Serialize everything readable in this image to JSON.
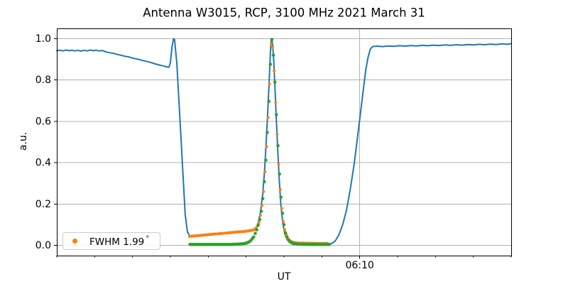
{
  "title": "Antenna W3015, RCP, 3100 MHz 2021 March 31",
  "x_axis_label": "UT",
  "y_axis_label": "a.u.",
  "legend": {
    "text": "FWHM 1.99",
    "degree": "°",
    "marker_color": "#ff7f0e"
  },
  "colors": {
    "line": "#1f77b4",
    "fit": "#ff7f0e",
    "data": "#2ca02c",
    "grid": "#b0b0b0",
    "spine": "#000000"
  },
  "chart_data": {
    "type": "line",
    "title": "Antenna W3015, RCP, 3100 MHz 2021 March 31",
    "xlabel": "UT",
    "ylabel": "a.u.",
    "x_unit": "minutes after 06:00 UT",
    "xlim": [
      2,
      14
    ],
    "ylim": [
      -0.05,
      1.05
    ],
    "grid": true,
    "x_axis": {
      "major_ticks": [
        {
          "t": 10,
          "label": "06:10"
        }
      ],
      "minor_ticks": [
        2,
        3,
        4,
        5,
        6,
        7,
        8,
        9,
        10,
        11,
        12,
        13,
        14
      ]
    },
    "y_axis": {
      "ticks": [
        {
          "v": 0.0,
          "label": "0.0"
        },
        {
          "v": 0.2,
          "label": "0.2"
        },
        {
          "v": 0.4,
          "label": "0.4"
        },
        {
          "v": 0.6,
          "label": "0.6"
        },
        {
          "v": 0.8,
          "label": "0.8"
        },
        {
          "v": 1.0,
          "label": "1.0"
        }
      ]
    },
    "legend": {
      "position": "lower left",
      "entries": [
        {
          "label": "FWHM 1.99°",
          "series": "gaussian-fit",
          "color": "#ff7f0e"
        }
      ]
    },
    "series": [
      {
        "name": "signal-line",
        "type": "line",
        "color": "#1f77b4",
        "line_width": 2,
        "points": [
          [
            2.0,
            0.942
          ],
          [
            2.08,
            0.944
          ],
          [
            2.16,
            0.941
          ],
          [
            2.24,
            0.945
          ],
          [
            2.32,
            0.942
          ],
          [
            2.4,
            0.944
          ],
          [
            2.48,
            0.941
          ],
          [
            2.56,
            0.944
          ],
          [
            2.64,
            0.94
          ],
          [
            2.72,
            0.944
          ],
          [
            2.8,
            0.941
          ],
          [
            2.88,
            0.945
          ],
          [
            2.96,
            0.942
          ],
          [
            3.04,
            0.944
          ],
          [
            3.12,
            0.941
          ],
          [
            3.2,
            0.943
          ],
          [
            3.3,
            0.936
          ],
          [
            3.4,
            0.932
          ],
          [
            3.5,
            0.929
          ],
          [
            3.6,
            0.924
          ],
          [
            3.7,
            0.92
          ],
          [
            3.8,
            0.915
          ],
          [
            3.9,
            0.912
          ],
          [
            4.0,
            0.906
          ],
          [
            4.1,
            0.903
          ],
          [
            4.2,
            0.898
          ],
          [
            4.3,
            0.893
          ],
          [
            4.4,
            0.889
          ],
          [
            4.5,
            0.884
          ],
          [
            4.6,
            0.878
          ],
          [
            4.7,
            0.873
          ],
          [
            4.8,
            0.869
          ],
          [
            4.9,
            0.864
          ],
          [
            4.96,
            0.862
          ],
          [
            5.0,
            0.885
          ],
          [
            5.04,
            0.955
          ],
          [
            5.08,
            1.0
          ],
          [
            5.11,
            0.995
          ],
          [
            5.17,
            0.88
          ],
          [
            5.22,
            0.72
          ],
          [
            5.28,
            0.52
          ],
          [
            5.34,
            0.32
          ],
          [
            5.39,
            0.15
          ],
          [
            5.45,
            0.065
          ],
          [
            5.51,
            0.046
          ],
          [
            5.6,
            0.046
          ],
          [
            5.9,
            0.051
          ],
          [
            6.2,
            0.056
          ],
          [
            6.5,
            0.061
          ],
          [
            6.8,
            0.066
          ],
          [
            7.05,
            0.07
          ],
          [
            7.2,
            0.075
          ],
          [
            7.3,
            0.095
          ],
          [
            7.38,
            0.16
          ],
          [
            7.44,
            0.25
          ],
          [
            7.49,
            0.37
          ],
          [
            7.53,
            0.5
          ],
          [
            7.57,
            0.645
          ],
          [
            7.61,
            0.8
          ],
          [
            7.64,
            0.93
          ],
          [
            7.66,
            0.99
          ],
          [
            7.68,
            1.0
          ],
          [
            7.7,
            0.97
          ],
          [
            7.73,
            0.89
          ],
          [
            7.76,
            0.77
          ],
          [
            7.8,
            0.6
          ],
          [
            7.84,
            0.44
          ],
          [
            7.88,
            0.3
          ],
          [
            7.92,
            0.19
          ],
          [
            7.97,
            0.105
          ],
          [
            8.02,
            0.055
          ],
          [
            8.08,
            0.028
          ],
          [
            8.15,
            0.015
          ],
          [
            8.3,
            0.01
          ],
          [
            8.6,
            0.008
          ],
          [
            8.9,
            0.007
          ],
          [
            9.1,
            0.007
          ],
          [
            9.25,
            0.008
          ],
          [
            9.35,
            0.02
          ],
          [
            9.45,
            0.05
          ],
          [
            9.55,
            0.1
          ],
          [
            9.65,
            0.17
          ],
          [
            9.75,
            0.27
          ],
          [
            9.85,
            0.39
          ],
          [
            9.92,
            0.49
          ],
          [
            9.98,
            0.58
          ],
          [
            10.04,
            0.67
          ],
          [
            10.1,
            0.76
          ],
          [
            10.16,
            0.85
          ],
          [
            10.22,
            0.91
          ],
          [
            10.28,
            0.95
          ],
          [
            10.34,
            0.962
          ],
          [
            10.45,
            0.964
          ],
          [
            10.6,
            0.962
          ],
          [
            10.75,
            0.965
          ],
          [
            10.9,
            0.963
          ],
          [
            11.05,
            0.966
          ],
          [
            11.2,
            0.964
          ],
          [
            11.35,
            0.967
          ],
          [
            11.5,
            0.965
          ],
          [
            11.65,
            0.968
          ],
          [
            11.8,
            0.966
          ],
          [
            11.95,
            0.969
          ],
          [
            12.1,
            0.967
          ],
          [
            12.25,
            0.97
          ],
          [
            12.4,
            0.968
          ],
          [
            12.55,
            0.971
          ],
          [
            12.7,
            0.969
          ],
          [
            12.85,
            0.972
          ],
          [
            13.0,
            0.97
          ],
          [
            13.15,
            0.973
          ],
          [
            13.3,
            0.971
          ],
          [
            13.45,
            0.974
          ],
          [
            13.6,
            0.972
          ],
          [
            13.75,
            0.975
          ],
          [
            13.9,
            0.973
          ],
          [
            14.0,
            0.976
          ]
        ]
      },
      {
        "name": "gaussian-fit",
        "type": "dots",
        "color": "#ff7f0e",
        "dot_radius": 2.1,
        "dot_step": 0.04,
        "label": "FWHM 1.99°",
        "fwhm_deg": 1.99,
        "keypoints": [
          [
            5.5,
            0.043
          ],
          [
            5.8,
            0.048
          ],
          [
            6.1,
            0.053
          ],
          [
            6.4,
            0.058
          ],
          [
            6.7,
            0.063
          ],
          [
            7.0,
            0.068
          ],
          [
            7.2,
            0.074
          ],
          [
            7.28,
            0.085
          ],
          [
            7.35,
            0.115
          ],
          [
            7.41,
            0.175
          ],
          [
            7.46,
            0.26
          ],
          [
            7.51,
            0.38
          ],
          [
            7.55,
            0.51
          ],
          [
            7.59,
            0.655
          ],
          [
            7.62,
            0.78
          ],
          [
            7.645,
            0.9
          ],
          [
            7.66,
            0.975
          ],
          [
            7.675,
            1.0
          ],
          [
            7.69,
            0.985
          ],
          [
            7.71,
            0.93
          ],
          [
            7.74,
            0.845
          ],
          [
            7.77,
            0.73
          ],
          [
            7.81,
            0.575
          ],
          [
            7.85,
            0.425
          ],
          [
            7.89,
            0.295
          ],
          [
            7.93,
            0.195
          ],
          [
            7.98,
            0.115
          ],
          [
            8.03,
            0.065
          ],
          [
            8.09,
            0.035
          ],
          [
            8.16,
            0.021
          ],
          [
            8.24,
            0.014
          ],
          [
            8.35,
            0.011
          ],
          [
            8.6,
            0.01
          ],
          [
            9.0,
            0.009
          ],
          [
            9.16,
            0.009
          ]
        ]
      },
      {
        "name": "scan-data",
        "type": "dots",
        "color": "#2ca02c",
        "dot_radius": 2.3,
        "dot_step": 0.04,
        "label": "",
        "keypoints": [
          [
            5.52,
            0.004
          ],
          [
            6.6,
            0.004
          ],
          [
            6.85,
            0.006
          ],
          [
            7.0,
            0.01
          ],
          [
            7.1,
            0.018
          ],
          [
            7.2,
            0.04
          ],
          [
            7.28,
            0.075
          ],
          [
            7.35,
            0.115
          ],
          [
            7.41,
            0.175
          ],
          [
            7.46,
            0.26
          ],
          [
            7.51,
            0.38
          ],
          [
            7.55,
            0.51
          ],
          [
            7.59,
            0.655
          ],
          [
            7.62,
            0.78
          ],
          [
            7.645,
            0.9
          ],
          [
            7.665,
            0.985
          ],
          [
            7.685,
            1.0
          ],
          [
            7.7,
            0.975
          ],
          [
            7.72,
            0.92
          ],
          [
            7.75,
            0.83
          ],
          [
            7.78,
            0.71
          ],
          [
            7.82,
            0.555
          ],
          [
            7.86,
            0.41
          ],
          [
            7.9,
            0.28
          ],
          [
            7.94,
            0.185
          ],
          [
            7.99,
            0.11
          ],
          [
            8.04,
            0.06
          ],
          [
            8.1,
            0.03
          ],
          [
            8.17,
            0.015
          ],
          [
            8.25,
            0.008
          ],
          [
            8.4,
            0.005
          ],
          [
            8.7,
            0.004
          ],
          [
            9.0,
            0.004
          ],
          [
            9.22,
            0.004
          ]
        ]
      }
    ]
  }
}
